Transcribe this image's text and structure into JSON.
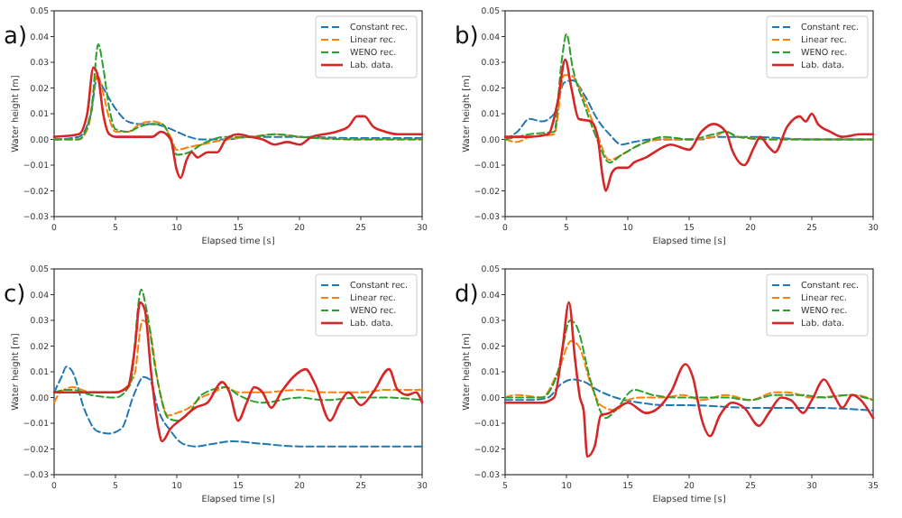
{
  "chart_data": [
    {
      "type": "line",
      "title": "a)",
      "xlabel": "Elapsed time [s]",
      "ylabel": "Water height [m]",
      "xlim": [
        0,
        30
      ],
      "xticks": [
        0,
        5,
        10,
        15,
        20,
        25,
        30
      ],
      "ylim": [
        -0.03,
        0.05
      ],
      "yticks": [
        {
          "value": -0.03,
          "label": "−0.03"
        },
        {
          "value": -0.02,
          "label": "−0.02"
        },
        {
          "value": -0.01,
          "label": "−0.01"
        },
        {
          "value": 0,
          "label": "0.00"
        },
        0.01,
        0.02,
        0.03,
        0.04,
        0.05
      ],
      "legend": "top right",
      "series": [
        {
          "name": "Constant rec.",
          "color": "#1f77b4",
          "line_style": "dashed",
          "x": [
            0,
            2,
            3,
            3.5,
            4,
            5,
            6,
            7,
            8,
            9,
            10,
            11,
            12,
            14,
            16,
            18,
            20,
            25,
            30
          ],
          "values": [
            0,
            0.001,
            0.01,
            0.024,
            0.02,
            0.012,
            0.007,
            0.006,
            0.006,
            0.005,
            0.003,
            0.001,
            0,
            0,
            0.001,
            0.001,
            0.001,
            0.0005,
            0.0005
          ]
        },
        {
          "name": "Linear rec.",
          "color": "#ff7f0e",
          "line_style": "dashed",
          "x": [
            0,
            2,
            2.8,
            3.5,
            4,
            4.5,
            5,
            6,
            7,
            8,
            8.8,
            9.5,
            10,
            11,
            12,
            14,
            16,
            18,
            20,
            25,
            30
          ],
          "values": [
            0,
            0,
            0.005,
            0.025,
            0.018,
            0.008,
            0.003,
            0.003,
            0.006,
            0.007,
            0.006,
            0.001,
            -0.004,
            -0.003,
            -0.002,
            0,
            0.001,
            0.002,
            0.001,
            0,
            0
          ]
        },
        {
          "name": "WENO rec.",
          "color": "#2ca02c",
          "line_style": "dashed",
          "x": [
            0,
            2,
            3,
            3.6,
            4,
            4.5,
            5,
            6,
            7,
            8,
            8.8,
            9.5,
            10,
            11,
            12,
            14,
            16,
            18,
            20,
            25,
            30
          ],
          "values": [
            0,
            0,
            0.01,
            0.037,
            0.028,
            0.012,
            0.004,
            0.003,
            0.005,
            0.006,
            0.006,
            0,
            -0.006,
            -0.005,
            -0.002,
            0.001,
            0.001,
            0.002,
            0.001,
            0,
            0
          ]
        },
        {
          "name": "Lab. data.",
          "color": "#d62728",
          "line_style": "solid",
          "x": [
            0,
            2,
            2.7,
            3.2,
            3.6,
            4,
            4.5,
            5,
            6,
            7,
            8,
            8.7,
            9.5,
            10,
            10.3,
            10.8,
            11.2,
            11.7,
            12.5,
            13.3,
            14,
            15,
            16,
            17,
            18,
            19,
            20,
            21,
            22,
            23,
            24,
            24.7,
            25.3,
            26,
            27,
            28,
            29,
            30
          ],
          "values": [
            0.001,
            0.002,
            0.01,
            0.028,
            0.024,
            0.01,
            0.002,
            0.001,
            0.001,
            0.001,
            0.001,
            0.003,
            0,
            -0.012,
            -0.015,
            -0.008,
            -0.005,
            -0.007,
            -0.005,
            -0.005,
            0,
            0.002,
            0.001,
            0,
            -0.002,
            -0.001,
            -0.002,
            0.001,
            0.002,
            0.003,
            0.005,
            0.009,
            0.009,
            0.005,
            0.003,
            0.002,
            0.002,
            0.002
          ]
        }
      ]
    },
    {
      "type": "line",
      "title": "b)",
      "xlabel": "Elapsed time [s]",
      "ylabel": "Water height [m]",
      "xlim": [
        0,
        30
      ],
      "xticks": [
        0,
        5,
        10,
        15,
        20,
        25,
        30
      ],
      "ylim": [
        -0.03,
        0.05
      ],
      "yticks": [
        {
          "value": -0.03,
          "label": "−0.03"
        },
        {
          "value": -0.02,
          "label": "−0.02"
        },
        {
          "value": -0.01,
          "label": "−0.01"
        },
        {
          "value": 0,
          "label": "0.00"
        },
        0.01,
        0.02,
        0.03,
        0.04,
        0.05
      ],
      "legend": "top right",
      "series": [
        {
          "name": "Constant rec.",
          "color": "#1f77b4",
          "line_style": "dashed",
          "x": [
            0,
            1,
            2,
            3,
            4,
            4.8,
            5.5,
            6.5,
            7.5,
            8.5,
            9.5,
            10.5,
            12,
            14,
            16,
            17,
            20,
            25,
            30
          ],
          "values": [
            0,
            0.003,
            0.008,
            0.007,
            0.01,
            0.022,
            0.023,
            0.017,
            0.008,
            0.002,
            -0.002,
            -0.001,
            0,
            0,
            0,
            0.001,
            0.001,
            0,
            0
          ]
        },
        {
          "name": "Linear rec.",
          "color": "#ff7f0e",
          "line_style": "dashed",
          "x": [
            0,
            1,
            2,
            4,
            4.8,
            5.3,
            6.5,
            7.5,
            8.5,
            9.5,
            11,
            13,
            15,
            17,
            18,
            19,
            22,
            25,
            30
          ],
          "values": [
            0,
            -0.001,
            0.001,
            0.002,
            0.025,
            0.025,
            0.015,
            0.002,
            -0.008,
            -0.006,
            -0.002,
            0,
            0,
            0.001,
            0.003,
            0.001,
            0,
            0,
            0
          ]
        },
        {
          "name": "WENO rec.",
          "color": "#2ca02c",
          "line_style": "dashed",
          "x": [
            0,
            1,
            2,
            4,
            4.6,
            5,
            5.5,
            6.5,
            7.5,
            8.5,
            9.5,
            11,
            13,
            15,
            17,
            18,
            19,
            22,
            25,
            30
          ],
          "values": [
            0,
            0.001,
            0.002,
            0.003,
            0.03,
            0.041,
            0.028,
            0.013,
            0,
            -0.009,
            -0.006,
            -0.002,
            0.001,
            0,
            0.002,
            0.003,
            0.001,
            0,
            0,
            0
          ]
        },
        {
          "name": "Lab. data.",
          "color": "#d62728",
          "line_style": "solid",
          "x": [
            0,
            2,
            3.5,
            4.3,
            4.9,
            5.4,
            6,
            7,
            7.5,
            8,
            8.2,
            8.7,
            9.2,
            10,
            10.5,
            11.5,
            12.5,
            13.5,
            15,
            16,
            17,
            18,
            18.5,
            19.5,
            20.3,
            20.8,
            21.5,
            22,
            23,
            24,
            24.5,
            25,
            25.5,
            26.5,
            27.5,
            29,
            30
          ],
          "values": [
            0.001,
            0.001,
            0.002,
            0.015,
            0.031,
            0.02,
            0.008,
            0.007,
            0.002,
            -0.016,
            -0.02,
            -0.013,
            -0.011,
            -0.011,
            -0.009,
            -0.007,
            -0.004,
            -0.002,
            -0.004,
            0.003,
            0.006,
            0.003,
            -0.004,
            -0.01,
            -0.003,
            0.001,
            -0.003,
            -0.005,
            0.005,
            0.009,
            0.007,
            0.01,
            0.006,
            0.003,
            0.001,
            0.002,
            0.002
          ]
        }
      ]
    },
    {
      "type": "line",
      "title": "c)",
      "xlabel": "Elapsed time [s]",
      "ylabel": "Water height [m]",
      "xlim": [
        0,
        30
      ],
      "xticks": [
        0,
        5,
        10,
        15,
        20,
        25,
        30
      ],
      "ylim": [
        -0.03,
        0.05
      ],
      "yticks": [
        {
          "value": -0.03,
          "label": "−0.03"
        },
        {
          "value": -0.02,
          "label": "−0.02"
        },
        {
          "value": -0.01,
          "label": "−0.01"
        },
        {
          "value": 0,
          "label": "0.00"
        },
        0.01,
        0.02,
        0.03,
        0.04,
        0.05
      ],
      "legend": "top right",
      "series": [
        {
          "name": "Constant rec.",
          "color": "#1f77b4",
          "line_style": "dashed",
          "x": [
            0,
            0.6,
            1,
            1.5,
            2.5,
            3.5,
            4.5,
            5.5,
            6.5,
            7.3,
            7.8,
            8.5,
            9.5,
            10.5,
            11.5,
            13,
            14.5,
            17,
            20,
            25,
            30
          ],
          "values": [
            0.002,
            0.008,
            0.012,
            0.01,
            -0.005,
            -0.013,
            -0.014,
            -0.012,
            0.001,
            0.008,
            0.007,
            -0.005,
            -0.013,
            -0.018,
            -0.019,
            -0.018,
            -0.017,
            -0.018,
            -0.019,
            -0.019,
            -0.019
          ]
        },
        {
          "name": "Linear rec.",
          "color": "#ff7f0e",
          "line_style": "dashed",
          "x": [
            0,
            0.5,
            1.5,
            3,
            5,
            6.5,
            7.2,
            7.7,
            8.5,
            9.3,
            10,
            11,
            12,
            13,
            14,
            15,
            17,
            20,
            22,
            25,
            27,
            30
          ],
          "values": [
            -0.002,
            0.002,
            0.004,
            0.002,
            0.002,
            0.008,
            0.03,
            0.028,
            0.005,
            -0.007,
            -0.006,
            -0.004,
            0,
            0.002,
            0.004,
            0.002,
            0.002,
            0.003,
            0.002,
            0.002,
            0.003,
            0.003
          ]
        },
        {
          "name": "WENO rec.",
          "color": "#2ca02c",
          "line_style": "dashed",
          "x": [
            0,
            1,
            1.5,
            3,
            5,
            6.2,
            7.1,
            7.5,
            8.3,
            9.3,
            10,
            11,
            12,
            14,
            15,
            17,
            20,
            22,
            25,
            27,
            30
          ],
          "values": [
            0.002,
            0.003,
            0.003,
            0.001,
            0,
            0.005,
            0.042,
            0.035,
            0.01,
            -0.008,
            -0.009,
            -0.006,
            0.001,
            0.004,
            0.001,
            -0.002,
            0,
            -0.001,
            0,
            0,
            -0.001
          ]
        },
        {
          "name": "Lab. data.",
          "color": "#d62728",
          "line_style": "solid",
          "x": [
            0,
            2,
            5,
            6,
            6.6,
            7,
            7.4,
            7.9,
            8.5,
            8.8,
            9.5,
            10.5,
            11.5,
            12.5,
            13.7,
            14.3,
            15,
            15.7,
            16.3,
            17,
            17.7,
            18.5,
            19.5,
            20.5,
            21.3,
            22.5,
            23.3,
            24,
            25,
            26,
            27.3,
            28,
            28.8,
            29.5,
            30
          ],
          "values": [
            0.002,
            0.002,
            0.002,
            0.004,
            0.02,
            0.037,
            0.034,
            0.01,
            -0.012,
            -0.017,
            -0.012,
            -0.008,
            -0.004,
            -0.002,
            0.006,
            0.002,
            -0.009,
            -0.002,
            0.004,
            0.002,
            -0.004,
            0.002,
            0.008,
            0.011,
            0.005,
            -0.009,
            -0.002,
            0.002,
            -0.003,
            0.002,
            0.011,
            0.003,
            0.001,
            0.002,
            -0.002
          ]
        }
      ]
    },
    {
      "type": "line",
      "title": "d)",
      "xlabel": "Elapsed time [s]",
      "ylabel": "Water height [m]",
      "xlim": [
        5,
        35
      ],
      "xticks": [
        5,
        10,
        15,
        20,
        25,
        30,
        35
      ],
      "ylim": [
        -0.03,
        0.05
      ],
      "yticks": [
        {
          "value": -0.03,
          "label": "−0.03"
        },
        {
          "value": -0.02,
          "label": "−0.02"
        },
        {
          "value": -0.01,
          "label": "−0.01"
        },
        {
          "value": 0,
          "label": "0.00"
        },
        0.01,
        0.02,
        0.03,
        0.04,
        0.05
      ],
      "legend": "top right",
      "series": [
        {
          "name": "Constant rec.",
          "color": "#1f77b4",
          "line_style": "dashed",
          "x": [
            5,
            7,
            8.5,
            9.5,
            10.5,
            11.5,
            12.5,
            14,
            16,
            18,
            20,
            25,
            30,
            35
          ],
          "values": [
            -0.001,
            -0.001,
            0,
            0.005,
            0.007,
            0.006,
            0.003,
            0,
            -0.002,
            -0.003,
            -0.003,
            -0.004,
            -0.004,
            -0.005
          ]
        },
        {
          "name": "Linear rec.",
          "color": "#ff7f0e",
          "line_style": "dashed",
          "x": [
            5,
            6,
            8,
            9.3,
            10.4,
            11,
            12,
            12.8,
            14,
            15,
            16,
            18,
            19.5,
            21,
            23,
            25,
            27,
            28,
            30,
            33.5,
            35
          ],
          "values": [
            0,
            0.001,
            0,
            0.01,
            0.022,
            0.02,
            0.005,
            -0.003,
            -0.005,
            -0.001,
            0,
            0,
            0.001,
            -0.001,
            0.001,
            -0.001,
            0.002,
            0.002,
            0,
            0.001,
            -0.001
          ]
        },
        {
          "name": "WENO rec.",
          "color": "#2ca02c",
          "line_style": "dashed",
          "x": [
            5,
            8,
            9.3,
            10.3,
            10.8,
            12,
            13.2,
            14,
            15.5,
            17,
            19,
            21,
            23,
            25,
            27,
            29,
            31,
            33,
            35
          ],
          "values": [
            0,
            0,
            0.01,
            0.03,
            0.028,
            0.006,
            -0.008,
            -0.005,
            0.003,
            0.001,
            0,
            0,
            0,
            -0.001,
            0.001,
            0.001,
            0,
            0.001,
            -0.001
          ]
        },
        {
          "name": "Lab. data.",
          "color": "#d62728",
          "line_style": "solid",
          "x": [
            5,
            8,
            9,
            9.7,
            10.2,
            10.7,
            11.1,
            11.4,
            11.7,
            12.3,
            12.8,
            13.5,
            14.5,
            15,
            16.5,
            17.5,
            18.5,
            19.7,
            20.3,
            21,
            21.7,
            22.5,
            23.5,
            24.5,
            25.7,
            26.5,
            27.5,
            28.3,
            29.3,
            30,
            31,
            31.8,
            32.5,
            33.3,
            34,
            35
          ],
          "values": [
            -0.002,
            -0.002,
            0,
            0.02,
            0.037,
            0.015,
            0,
            -0.005,
            -0.023,
            -0.019,
            -0.007,
            -0.006,
            -0.003,
            -0.002,
            -0.006,
            -0.004,
            0.002,
            0.013,
            0.008,
            -0.008,
            -0.015,
            -0.007,
            -0.002,
            -0.004,
            -0.011,
            -0.006,
            0,
            -0.001,
            -0.006,
            -0.001,
            0.007,
            0.001,
            -0.004,
            0.001,
            -0.001,
            -0.008
          ]
        }
      ]
    }
  ]
}
